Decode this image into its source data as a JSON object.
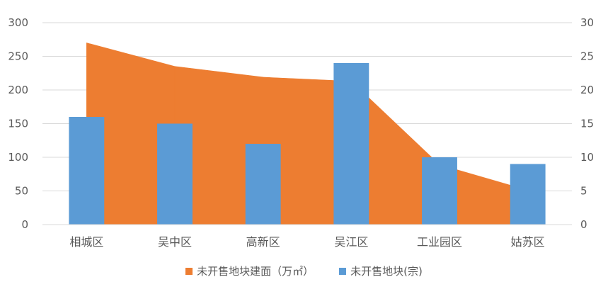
{
  "chart_data": {
    "type": "bar",
    "categories": [
      "相城区",
      "吴中区",
      "高新区",
      "吴江区",
      "工业园区",
      "姑苏区"
    ],
    "series": [
      {
        "name": "未开售地块建面（万㎡）",
        "chart_type": "area",
        "axis": "left",
        "color": "#ED7D31",
        "values": [
          270,
          235,
          219,
          213,
          89,
          51
        ]
      },
      {
        "name": "未开售地块(宗)",
        "chart_type": "bar",
        "axis": "right",
        "color": "#5B9BD5",
        "values": [
          16,
          15,
          12,
          24,
          10,
          9
        ]
      }
    ],
    "y_left": {
      "ylim": [
        0,
        300
      ],
      "ticks": [
        0,
        50,
        100,
        150,
        200,
        250,
        300
      ]
    },
    "y_right": {
      "ylim": [
        0,
        30
      ],
      "ticks": [
        0,
        5,
        10,
        15,
        20,
        25,
        30
      ]
    },
    "grid": true,
    "legend_position": "bottom"
  }
}
